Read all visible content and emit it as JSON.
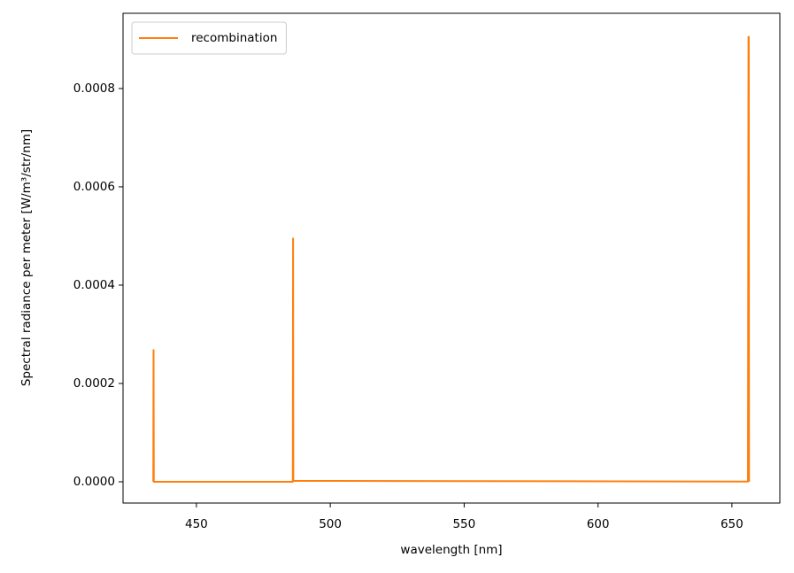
{
  "chart_data": {
    "type": "line",
    "xlabel": "wavelength [nm]",
    "ylabel": "Spectral radiance per meter [W/m³/str/nm]",
    "x": [
      433.9,
      434.0,
      434.1,
      486.0,
      486.1,
      486.2,
      656.0,
      656.2,
      656.3,
      656.4
    ],
    "series": [
      {
        "name": "recombination",
        "color": "#ff7f0e",
        "values": [
          0,
          0.000268,
          0,
          0,
          0.000495,
          2e-06,
          5e-07,
          0.000905,
          0.000905,
          0
        ]
      }
    ],
    "xlim": [
      422.6,
      667.9
    ],
    "xticks": [
      450,
      500,
      550,
      600,
      650
    ],
    "ylim": [
      -4.32e-05,
      0.000953
    ],
    "yticks": [
      {
        "value": 0,
        "label": "0.0000"
      },
      {
        "value": 0.0002,
        "label": "0.0002"
      },
      {
        "value": 0.0004,
        "label": "0.0004"
      },
      {
        "value": 0.0006,
        "label": "0.0006"
      },
      {
        "value": 0.0008,
        "label": "0.0008"
      }
    ],
    "grid": false,
    "legend": "upper-left"
  }
}
